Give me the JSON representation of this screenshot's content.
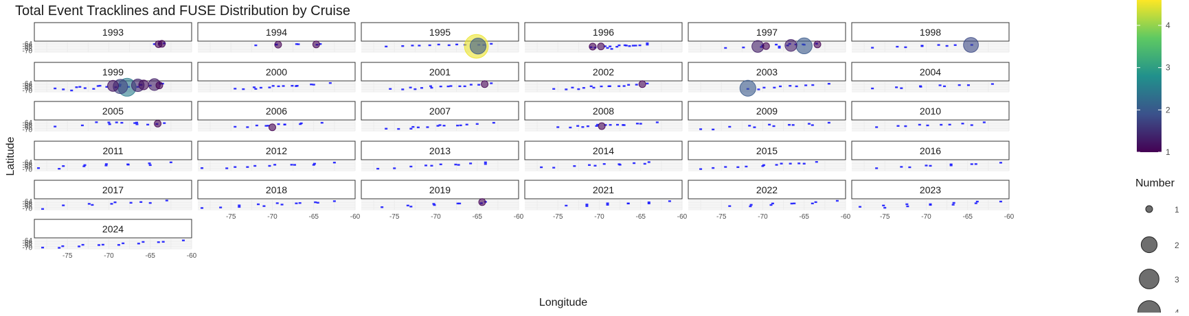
{
  "chart_data": {
    "type": "scatter",
    "title": "Total Event Tracklines and FUSE Distribution by Cruise",
    "xlabel": "Longitude",
    "ylabel": "Latitude",
    "xlim": [
      -79,
      -60
    ],
    "ylim": [
      -71,
      -63
    ],
    "x_ticks": [
      -75,
      -70,
      -65,
      -60
    ],
    "y_ticks": [
      -64,
      -66,
      -68,
      -70
    ],
    "grid": true,
    "legend_position": "right",
    "track_color": "#1a1aff",
    "colorbar": {
      "ticks": [
        1,
        2,
        3,
        4
      ],
      "range": [
        1,
        4.6
      ],
      "colors": [
        "#440154",
        "#3b528b",
        "#21918c",
        "#5ec962",
        "#fde725"
      ]
    },
    "size_legend": {
      "title": "Number",
      "labels": [
        "1",
        "2",
        "3",
        "4"
      ],
      "fill": "#555555"
    },
    "panels": [
      {
        "name": "1993",
        "tracks": [
          [
            -64.5,
            -64.0,
            -63.3,
            -64.1,
            3
          ]
        ],
        "fuse": [
          [
            -64.0,
            -64.4,
            1
          ],
          [
            -63.6,
            -64.1,
            1
          ]
        ]
      },
      {
        "name": "1994",
        "tracks": [
          [
            -72.0,
            -65.0,
            -64.6,
            -64.5,
            4
          ],
          [
            -69.5,
            -64.3,
            -64.2,
            -64.6,
            3
          ]
        ],
        "fuse": [
          [
            -69.3,
            -64.8,
            1
          ],
          [
            -64.7,
            -64.6,
            1
          ]
        ]
      },
      {
        "name": "1995",
        "tracks": [
          [
            -76.0,
            -66.0,
            -63.3,
            -64.1,
            5
          ],
          [
            -74.0,
            -65.6,
            -64.2,
            -64.7,
            4
          ],
          [
            -72.0,
            -65.2,
            -64.8,
            -65.3,
            3
          ]
        ],
        "fuse": [
          [
            -65.1,
            -66.2,
            4.5
          ],
          [
            -64.9,
            -66.0,
            2
          ]
        ]
      },
      {
        "name": "1996",
        "tracks": [
          [
            -71.0,
            -66.6,
            -64.2,
            -64.8,
            5
          ],
          [
            -70.5,
            -66.9,
            -65.1,
            -65.0,
            4
          ],
          [
            -69.0,
            -67.2,
            -65.6,
            -65.2,
            4
          ],
          [
            -68.5,
            -68.0,
            -64.2,
            -64.0,
            3
          ]
        ],
        "fuse": [
          [
            -70.8,
            -66.4,
            1
          ],
          [
            -69.8,
            -66.3,
            1
          ]
        ]
      },
      {
        "name": "1997",
        "tracks": [
          [
            -74.5,
            -67.2,
            -68.0,
            -67.0,
            4
          ],
          [
            -70.0,
            -65.0,
            -63.5,
            -64.0,
            5
          ],
          [
            -68.0,
            -66.0,
            -65.0,
            -64.5,
            4
          ]
        ],
        "fuse": [
          [
            -70.6,
            -66.3,
            1.3
          ],
          [
            -69.6,
            -66.0,
            1
          ],
          [
            -65.0,
            -65.8,
            2
          ],
          [
            -66.6,
            -65.4,
            1.3
          ],
          [
            -63.4,
            -64.6,
            1
          ]
        ]
      },
      {
        "name": "1998",
        "tracks": [
          [
            -76.5,
            -67.0,
            -64.5,
            -65.0,
            5
          ],
          [
            -72.5,
            -66.6,
            -66.5,
            -64.8,
            4
          ]
        ],
        "fuse": [
          [
            -64.6,
            -65.0,
            1.8
          ]
        ]
      },
      {
        "name": "1999",
        "tracks": [
          [
            -76.5,
            -67.8,
            -63.5,
            -64.5,
            6
          ],
          [
            -75.5,
            -68.6,
            -65.0,
            -65.8,
            5
          ],
          [
            -74.5,
            -69.5,
            -66.5,
            -66.5,
            4
          ],
          [
            -73.5,
            -66.5,
            -63.8,
            -64.2,
            5
          ]
        ],
        "fuse": [
          [
            -67.8,
            -67.2,
            2.5
          ],
          [
            -66.5,
            -65.5,
            1.4
          ],
          [
            -65.8,
            -65.2,
            1.1
          ],
          [
            -64.5,
            -64.9,
            1.3
          ],
          [
            -63.9,
            -65.6,
            1
          ],
          [
            -68.6,
            -66.5,
            1.7
          ],
          [
            -69.5,
            -66.0,
            1.2
          ]
        ]
      },
      {
        "name": "2000",
        "tracks": [
          [
            -74.5,
            -68.0,
            -63.0,
            -64.0,
            6
          ],
          [
            -73.5,
            -68.4,
            -65.0,
            -65.0,
            5
          ],
          [
            -72.0,
            -68.2,
            -67.0,
            -65.6,
            4
          ]
        ],
        "fuse": []
      },
      {
        "name": "2001",
        "tracks": [
          [
            -75.5,
            -68.2,
            -63.3,
            -64.2,
            6
          ],
          [
            -74.0,
            -68.6,
            -64.8,
            -65.1,
            5
          ],
          [
            -72.5,
            -68.4,
            -66.5,
            -66.0,
            4
          ]
        ],
        "fuse": [
          [
            -64.1,
            -64.6,
            1
          ]
        ]
      },
      {
        "name": "2002",
        "tracks": [
          [
            -75.5,
            -68.2,
            -64.2,
            -64.4,
            6
          ],
          [
            -74.0,
            -68.6,
            -65.5,
            -65.0,
            5
          ],
          [
            -72.5,
            -68.4,
            -67.0,
            -65.8,
            4
          ]
        ],
        "fuse": [
          [
            -64.8,
            -64.6,
            1
          ]
        ]
      },
      {
        "name": "2003",
        "tracks": [
          [
            -71.8,
            -68.2,
            -62.0,
            -64.6,
            6
          ],
          [
            -70.5,
            -68.6,
            -64.8,
            -65.2,
            4
          ]
        ],
        "fuse": [
          [
            -71.8,
            -68.0,
            2
          ]
        ]
      },
      {
        "name": "2004",
        "tracks": [
          [
            -76.5,
            -67.8,
            -62.0,
            -64.8,
            6
          ],
          [
            -73.0,
            -67.6,
            -66.0,
            -65.0,
            4
          ]
        ],
        "fuse": []
      },
      {
        "name": "2005",
        "tracks": [
          [
            -76.5,
            -67.0,
            -63.3,
            -64.5,
            5
          ],
          [
            -71.5,
            -63.4,
            -64.2,
            -64.9,
            4
          ],
          [
            -70.0,
            -63.6,
            -65.3,
            -65.4,
            4
          ]
        ],
        "fuse": [
          [
            -64.1,
            -64.9,
            1
          ]
        ]
      },
      {
        "name": "2006",
        "tracks": [
          [
            -74.5,
            -67.2,
            -64.0,
            -64.2,
            5
          ],
          [
            -73.0,
            -67.5,
            -68.5,
            -66.0,
            3
          ],
          [
            -70.5,
            -66.3,
            -66.5,
            -65.0,
            3
          ]
        ],
        "fuse": [
          [
            -70.0,
            -68.0,
            1
          ]
        ]
      },
      {
        "name": "2007",
        "tracks": [
          [
            -76.0,
            -68.8,
            -63.0,
            -64.2,
            5
          ],
          [
            -74.5,
            -69.0,
            -65.0,
            -65.2,
            5
          ],
          [
            -73.0,
            -68.8,
            -67.0,
            -66.0,
            4
          ]
        ],
        "fuse": []
      },
      {
        "name": "2008",
        "tracks": [
          [
            -75.0,
            -67.5,
            -63.0,
            -64.2,
            6
          ],
          [
            -73.5,
            -67.8,
            -65.0,
            -65.0,
            5
          ],
          [
            -72.0,
            -67.4,
            -67.0,
            -65.8,
            4
          ]
        ],
        "fuse": [
          [
            -69.7,
            -67.0,
            1
          ]
        ]
      },
      {
        "name": "2009",
        "tracks": [
          [
            -77.5,
            -69.2,
            -76.0,
            -69.8,
            2
          ],
          [
            -74.0,
            -67.2,
            -62.0,
            -64.5,
            6
          ],
          [
            -71.0,
            -67.6,
            -64.0,
            -65.8,
            4
          ]
        ],
        "fuse": []
      },
      {
        "name": "2010",
        "tracks": [
          [
            -76.0,
            -67.5,
            -63.0,
            -64.2,
            6
          ],
          [
            -72.5,
            -66.7,
            -64.5,
            -65.8,
            4
          ]
        ],
        "fuse": []
      },
      {
        "name": "2011",
        "tracks": [
          [
            -78.5,
            -68.5,
            -76.0,
            -69.4,
            2
          ],
          [
            -75.5,
            -66.8,
            -62.5,
            -64.4,
            6
          ],
          [
            -73.0,
            -67.0,
            -65.0,
            -66.0,
            4
          ]
        ],
        "fuse": []
      },
      {
        "name": "2012",
        "tracks": [
          [
            -78.5,
            -68.5,
            -75.5,
            -69.0,
            2
          ],
          [
            -74.5,
            -67.6,
            -62.5,
            -64.6,
            6
          ],
          [
            -73.0,
            -67.6,
            -65.0,
            -65.8,
            4
          ]
        ],
        "fuse": []
      },
      {
        "name": "2013",
        "tracks": [
          [
            -77.0,
            -69.0,
            -75.0,
            -69.0,
            2
          ],
          [
            -73.0,
            -67.2,
            -64.0,
            -64.4,
            6
          ],
          [
            -70.5,
            -66.5,
            -64.0,
            -65.8,
            3
          ]
        ],
        "fuse": []
      },
      {
        "name": "2014",
        "tracks": [
          [
            -77.0,
            -67.8,
            -75.5,
            -68.5,
            2
          ],
          [
            -73.0,
            -66.8,
            -64.0,
            -64.2,
            6
          ],
          [
            -70.5,
            -66.5,
            -64.5,
            -65.6,
            3
          ]
        ],
        "fuse": []
      },
      {
        "name": "2015",
        "tracks": [
          [
            -77.5,
            -69.3,
            -73.0,
            -67.7,
            4
          ],
          [
            -72.0,
            -67.2,
            -63.5,
            -63.7,
            5
          ],
          [
            -70.0,
            -66.8,
            -65.0,
            -64.8,
            4
          ]
        ],
        "fuse": []
      },
      {
        "name": "2016",
        "tracks": [
          [
            -76.0,
            -68.6,
            -61.0,
            -64.7,
            6
          ],
          [
            -72.0,
            -67.8,
            -64.5,
            -65.2,
            4
          ]
        ],
        "fuse": []
      },
      {
        "name": "2017",
        "tracks": [
          [
            -75.5,
            -67.0,
            -63.0,
            -63.3,
            5
          ],
          [
            -72.0,
            -66.6,
            -65.0,
            -65.0,
            4
          ],
          [
            -78.0,
            -70.0,
            -78.0,
            -70.0,
            1
          ]
        ],
        "fuse": []
      },
      {
        "name": "2018",
        "tracks": [
          [
            -78.5,
            -69.2,
            -74.0,
            -69.0,
            3
          ],
          [
            -74.0,
            -67.0,
            -62.5,
            -64.2,
            6
          ],
          [
            -71.0,
            -67.6,
            -64.5,
            -64.8,
            4
          ]
        ],
        "fuse": []
      },
      {
        "name": "2019",
        "tracks": [
          [
            -76.5,
            -68.5,
            -64.0,
            -64.4,
            5
          ],
          [
            -73.0,
            -68.0,
            -64.5,
            -65.2,
            4
          ]
        ],
        "fuse": [
          [
            -64.4,
            -64.6,
            1
          ]
        ]
      },
      {
        "name": "2021",
        "tracks": [
          [
            -74.0,
            -67.2,
            -61.5,
            -64.2,
            6
          ],
          [
            -71.5,
            -67.6,
            -64.0,
            -65.4,
            4
          ]
        ],
        "fuse": []
      },
      {
        "name": "2022",
        "tracks": [
          [
            -74.0,
            -67.6,
            -61.0,
            -63.9,
            6
          ],
          [
            -71.5,
            -67.8,
            -64.0,
            -65.4,
            4
          ]
        ],
        "fuse": []
      },
      {
        "name": "2023",
        "tracks": [
          [
            -78.0,
            -68.2,
            -61.0,
            -63.8,
            7
          ],
          [
            -75.0,
            -69.0,
            -64.0,
            -65.6,
            5
          ]
        ],
        "fuse": []
      },
      {
        "name": "2024",
        "tracks": [
          [
            -78.0,
            -69.6,
            -61.0,
            -64.0,
            8
          ],
          [
            -76.0,
            -69.8,
            -64.0,
            -65.8,
            6
          ]
        ],
        "fuse": []
      }
    ]
  }
}
